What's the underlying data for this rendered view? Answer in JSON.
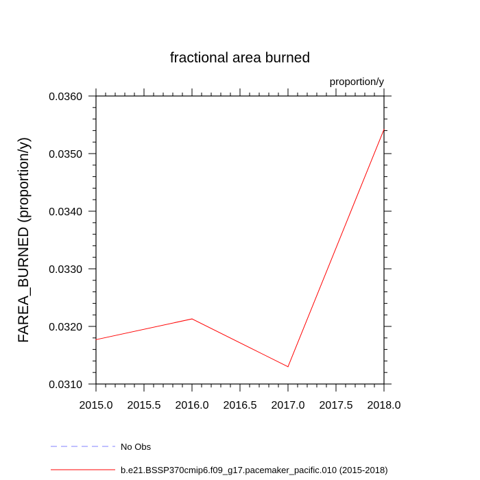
{
  "chart_data": {
    "type": "line",
    "title": "fractional area burned",
    "units_label": "proportion/y",
    "xlabel": "",
    "ylabel": "FAREA_BURNED  (proportion/y)",
    "xlim": [
      2015.0,
      2018.0
    ],
    "ylim": [
      0.031,
      0.036
    ],
    "x_ticks": [
      "2015.0",
      "2015.5",
      "2016.0",
      "2016.5",
      "2017.0",
      "2017.5",
      "2018.0"
    ],
    "y_ticks": [
      "0.0310",
      "0.0320",
      "0.0330",
      "0.0340",
      "0.0350",
      "0.0360"
    ],
    "grid": false,
    "legend_placement": "bottom-left",
    "series": [
      {
        "name": "No Obs",
        "color": "#8080ff",
        "style": "dashed",
        "x": [],
        "values": []
      },
      {
        "name": "b.e21.BSSP370cmip6.f09_g17.pacemaker_pacific.010 (2015-2018)",
        "color": "#ff0000",
        "style": "solid",
        "x": [
          2015,
          2016,
          2017,
          2018
        ],
        "values": [
          0.03177,
          0.03213,
          0.0313,
          0.03542
        ]
      }
    ]
  }
}
